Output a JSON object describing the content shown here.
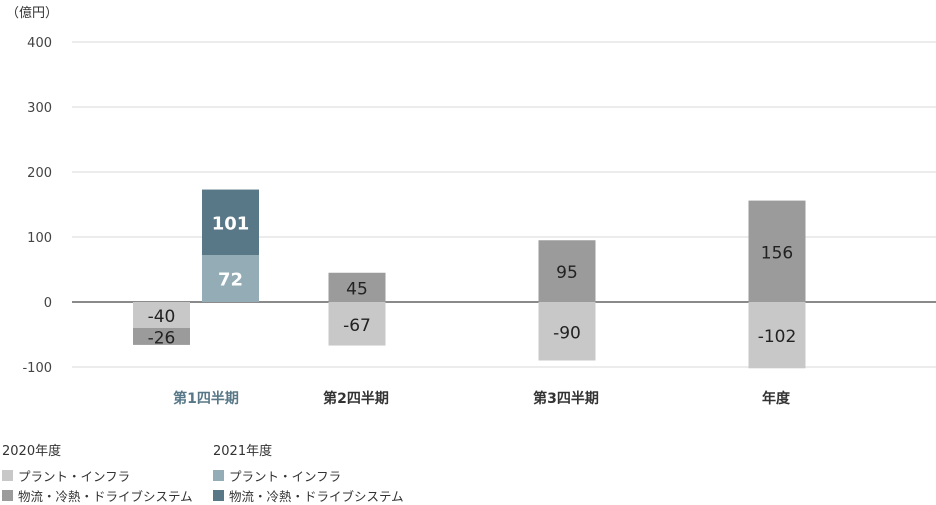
{
  "chart_data": {
    "type": "bar",
    "unit": "（億円）",
    "categories": [
      "第1四半期",
      "第2四半期",
      "第3四半期",
      "年度"
    ],
    "highlight_category": "第1四半期",
    "ylim": [
      -100,
      400
    ],
    "yticks": [
      -100,
      0,
      100,
      200,
      300,
      400
    ],
    "grid": true,
    "stacked": true,
    "groups": [
      {
        "name": "2020年度",
        "series": [
          {
            "name": "プラント・インフラ",
            "color": "#c8c8c8",
            "values": [
              -40,
              -67,
              -90,
              -102
            ]
          },
          {
            "name": "物流・冷熱・ドライブシステム",
            "color": "#9b9b9b",
            "values": [
              -26,
              45,
              95,
              156
            ]
          }
        ]
      },
      {
        "name": "2021年度",
        "series": [
          {
            "name": "プラント・インフラ",
            "color": "#93acb5",
            "values": [
              72,
              null,
              null,
              null
            ]
          },
          {
            "name": "物流・冷熱・ドライブシステム",
            "color": "#587888",
            "values": [
              101,
              null,
              null,
              null
            ]
          }
        ]
      }
    ],
    "legend_position": "bottom-left"
  }
}
